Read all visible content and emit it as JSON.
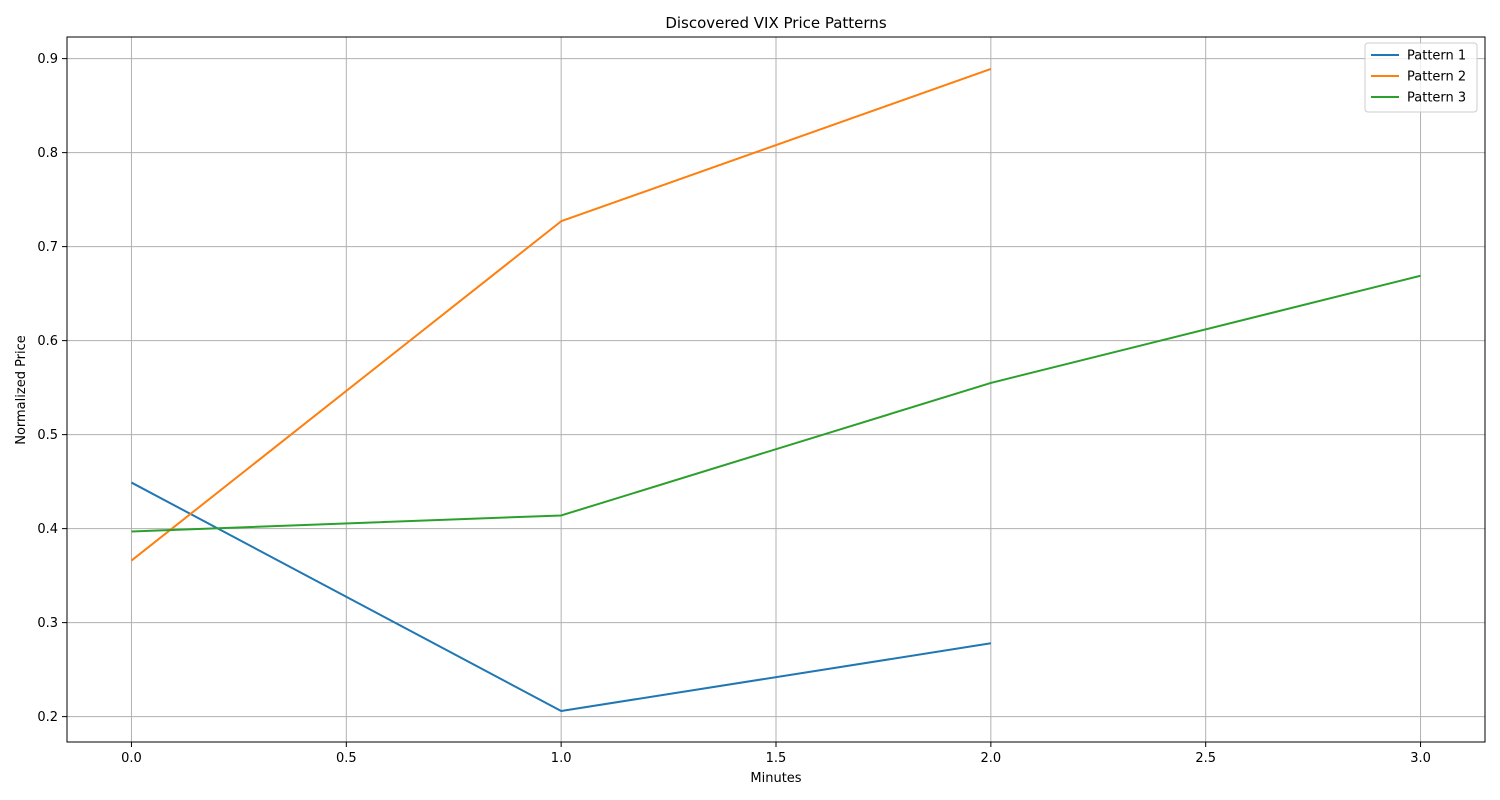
{
  "chart_data": {
    "type": "line",
    "title": "Discovered VIX Price Patterns",
    "xlabel": "Minutes",
    "ylabel": "Normalized Price",
    "xlim": [
      -0.15,
      3.15
    ],
    "ylim": [
      0.173,
      0.923
    ],
    "xticks": [
      "0.0",
      "0.5",
      "1.0",
      "1.5",
      "2.0",
      "2.5",
      "3.0"
    ],
    "yticks": [
      "0.2",
      "0.3",
      "0.4",
      "0.5",
      "0.6",
      "0.7",
      "0.8",
      "0.9"
    ],
    "grid": true,
    "legend_position": "top-right",
    "series": [
      {
        "name": "Pattern 1",
        "color": "#1f77b4",
        "x": [
          0,
          1,
          2
        ],
        "y": [
          0.449,
          0.206,
          0.278
        ]
      },
      {
        "name": "Pattern 2",
        "color": "#ff7f0e",
        "x": [
          0,
          1,
          2
        ],
        "y": [
          0.366,
          0.727,
          0.889
        ]
      },
      {
        "name": "Pattern 3",
        "color": "#2ca02c",
        "x": [
          0,
          1,
          2,
          3
        ],
        "y": [
          0.397,
          0.414,
          0.555,
          0.669
        ]
      }
    ]
  }
}
